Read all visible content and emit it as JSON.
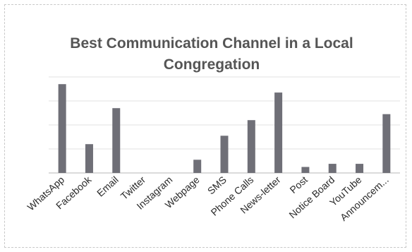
{
  "chart_data": {
    "type": "bar",
    "title_lines": [
      "Best Communication Channel in a Local",
      "Congregation"
    ],
    "categories": [
      "WhatsApp",
      "Facebook",
      "Email",
      "Twitter",
      "Instagram",
      "Webpage",
      "SMS",
      "Phone Calls",
      "News-letter",
      "Post",
      "Notice Board",
      "YouTube",
      "Announcem..."
    ],
    "values": [
      37,
      12,
      27,
      0,
      0,
      5.5,
      15.5,
      22,
      33.5,
      2.5,
      3.8,
      3.8,
      24.5
    ],
    "ylim": [
      0,
      40
    ],
    "y_gridline_step": 10,
    "y_tick_labels_visible": false,
    "xlabel": "",
    "ylabel": "",
    "grid": true,
    "legend": "none",
    "colors": {
      "bar": "#6f6f77",
      "grid": "#e2e2e2",
      "axis": "#cfcfcf",
      "text": "#555555"
    }
  }
}
